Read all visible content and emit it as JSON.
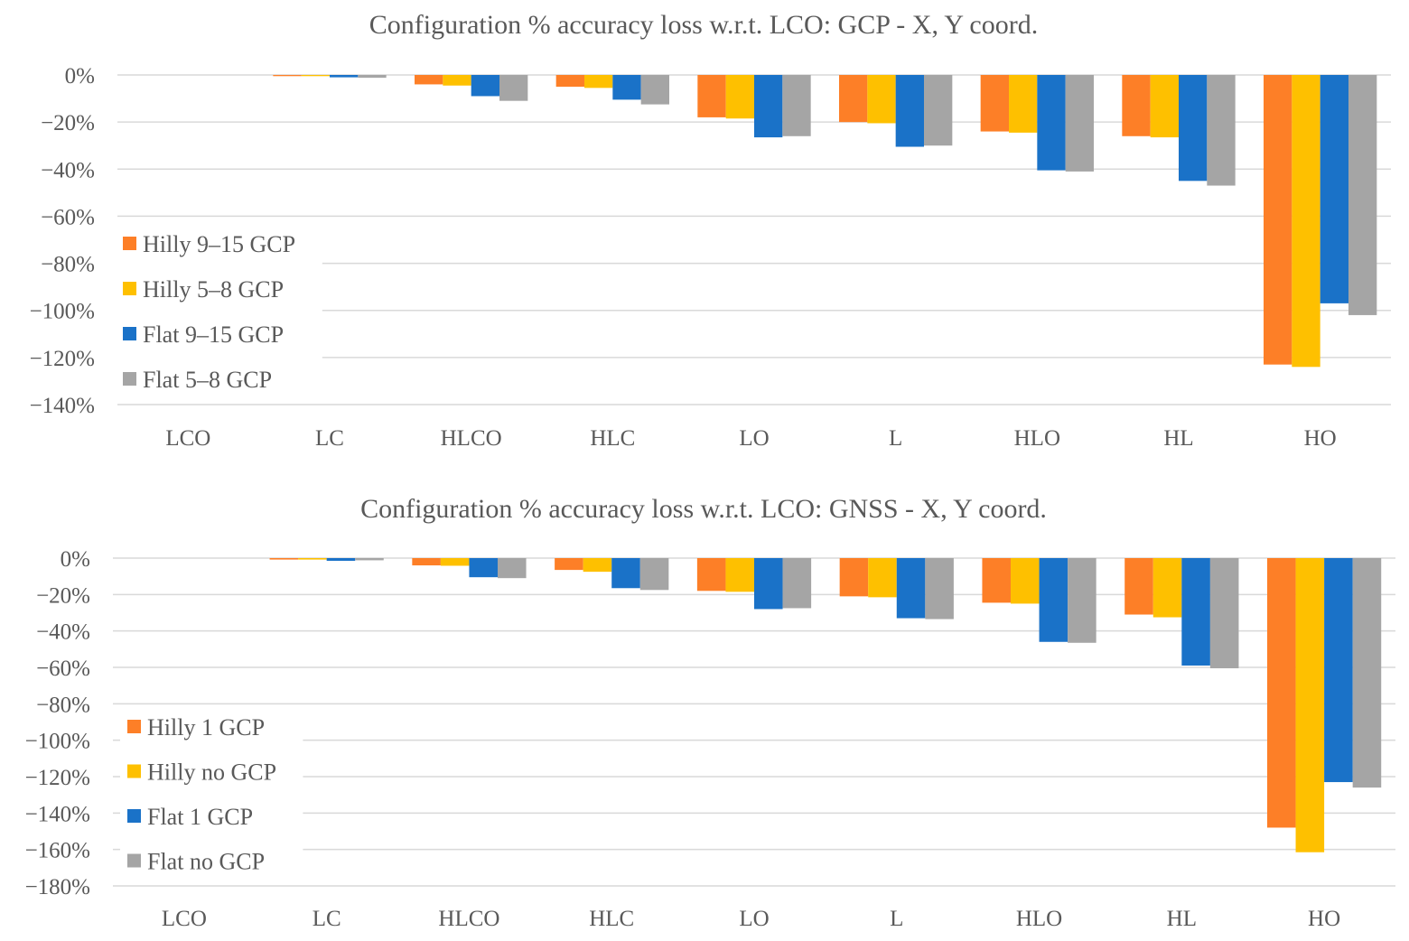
{
  "colors": {
    "orange": "#fd7f27",
    "yellow": "#fec000",
    "blue": "#1a72c8",
    "gray": "#a5a5a5",
    "grid": "#d9d9d9",
    "text": "#595959"
  },
  "chart_data": [
    {
      "type": "bar",
      "title": "Configuration % accuracy loss w.r.t. LCO: GCP -  X, Y  coord.",
      "xlabel": "",
      "ylabel": "",
      "categories": [
        "LCO",
        "LC",
        "HLCO",
        "HLC",
        "LO",
        "L",
        "HLO",
        "HL",
        "HO"
      ],
      "ylim": [
        -140,
        0
      ],
      "yticks": [
        0,
        -20,
        -40,
        -60,
        -80,
        -100,
        -120,
        -140
      ],
      "ytick_labels": [
        "0%",
        "−20%",
        "−40%",
        "−60%",
        "−80%",
        "−100%",
        "−120%",
        "−140%"
      ],
      "grid": true,
      "legend_position": "left",
      "series": [
        {
          "name": "Hilly 9–15 GCP",
          "color": "#fd7f27",
          "values": [
            0,
            -0.5,
            -4,
            -5,
            -18,
            -20,
            -24,
            -26,
            -123
          ]
        },
        {
          "name": "Hilly 5–8 GCP",
          "color": "#fec000",
          "values": [
            0,
            -0.5,
            -4.5,
            -5.5,
            -18.5,
            -20.5,
            -24.5,
            -26.5,
            -124
          ]
        },
        {
          "name": "Flat 9–15 GCP",
          "color": "#1a72c8",
          "values": [
            0,
            -1,
            -9,
            -10.5,
            -26.5,
            -30.5,
            -40.5,
            -45,
            -97
          ]
        },
        {
          "name": "Flat 5–8 GCP",
          "color": "#a5a5a5",
          "values": [
            0,
            -1.2,
            -11,
            -12.5,
            -26,
            -30,
            -41,
            -47,
            -102
          ]
        }
      ]
    },
    {
      "type": "bar",
      "title": "Configuration % accuracy loss w.r.t. LCO: GNSS - X, Y coord.",
      "xlabel": "",
      "ylabel": "",
      "categories": [
        "LCO",
        "LC",
        "HLCO",
        "HLC",
        "LO",
        "L",
        "HLO",
        "HL",
        "HO"
      ],
      "ylim": [
        -180,
        0
      ],
      "yticks": [
        0,
        -20,
        -40,
        -60,
        -80,
        -100,
        -120,
        -140,
        -160,
        -180
      ],
      "ytick_labels": [
        "0%",
        "−20%",
        "−40%",
        "−60%",
        "−80%",
        "−100%",
        "−120%",
        "−140%",
        "−160%",
        "−180%"
      ],
      "grid": true,
      "legend_position": "left",
      "series": [
        {
          "name": "Hilly 1 GCP",
          "color": "#fd7f27",
          "values": [
            0,
            -0.8,
            -4,
            -6.5,
            -18,
            -21,
            -24.5,
            -31,
            -148
          ]
        },
        {
          "name": "Hilly no GCP",
          "color": "#fec000",
          "values": [
            0,
            -0.8,
            -4.2,
            -7.5,
            -18.5,
            -21.5,
            -25,
            -32.5,
            -161.5
          ]
        },
        {
          "name": "Flat 1 GCP",
          "color": "#1a72c8",
          "values": [
            0,
            -1.5,
            -10.5,
            -16.5,
            -28,
            -33,
            -46,
            -59,
            -123
          ]
        },
        {
          "name": "Flat no GCP",
          "color": "#a5a5a5",
          "values": [
            0,
            -1.2,
            -11,
            -17.5,
            -27.5,
            -33.5,
            -46.5,
            -60.5,
            -126
          ]
        }
      ]
    }
  ]
}
